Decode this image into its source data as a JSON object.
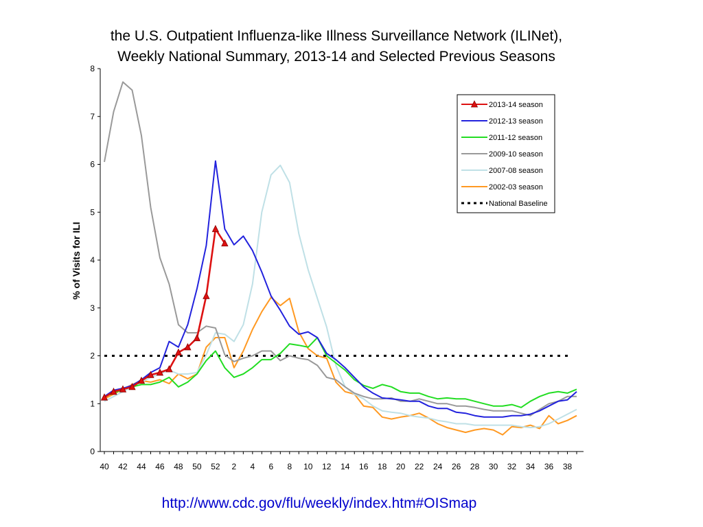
{
  "page": {
    "title_line1": "the U.S. Outpatient Influenza-like Illness Surveillance Network (ILINet),",
    "title_line2": "Weekly National Summary, 2013-14 and Selected Previous Seasons",
    "link": "http://www.cdc.gov/flu/weekly/index.htm#OISmap"
  },
  "chart_data": {
    "type": "line",
    "title": "the U.S. Outpatient Influenza-like Illness Surveillance Network (ILINet), Weekly National Summary, 2013-14 and Selected Previous Seasons",
    "xlabel": "",
    "ylabel": "% of Visits for ILI",
    "ylim": [
      0,
      8
    ],
    "yticks": [
      0,
      1,
      2,
      3,
      4,
      5,
      6,
      7,
      8
    ],
    "x_weeks": [
      40,
      41,
      42,
      43,
      44,
      45,
      46,
      47,
      48,
      49,
      50,
      51,
      52,
      1,
      2,
      3,
      4,
      5,
      6,
      7,
      8,
      9,
      10,
      11,
      12,
      13,
      14,
      15,
      16,
      17,
      18,
      19,
      20,
      21,
      22,
      23,
      24,
      25,
      26,
      27,
      28,
      29,
      30,
      31,
      32,
      33,
      34,
      35,
      36,
      37,
      38,
      39
    ],
    "x_tick_labels": [
      "40",
      "42",
      "44",
      "46",
      "48",
      "50",
      "52",
      "2",
      "4",
      "6",
      "8",
      "10",
      "12",
      "14",
      "16",
      "18",
      "20",
      "22",
      "24",
      "26",
      "28",
      "30",
      "32",
      "34",
      "36",
      "38"
    ],
    "grid": false,
    "legend_position": "top-right",
    "baseline": {
      "name": "National Baseline",
      "value": 2.0,
      "color": "#000000"
    },
    "series": [
      {
        "name": "2013-14 season",
        "color": "#dd1111",
        "markers": true,
        "values": [
          1.13,
          1.25,
          1.3,
          1.35,
          1.48,
          1.6,
          1.65,
          1.72,
          2.07,
          2.18,
          2.37,
          3.25,
          4.65,
          4.35
        ]
      },
      {
        "name": "2012-13 season",
        "color": "#2222dd",
        "markers": false,
        "values": [
          1.15,
          1.28,
          1.32,
          1.38,
          1.5,
          1.65,
          1.75,
          2.3,
          2.18,
          2.65,
          3.4,
          4.3,
          6.07,
          4.65,
          4.32,
          4.5,
          4.2,
          3.75,
          3.25,
          2.95,
          2.62,
          2.45,
          2.5,
          2.38,
          2.05,
          1.92,
          1.75,
          1.55,
          1.35,
          1.22,
          1.12,
          1.1,
          1.08,
          1.05,
          1.05,
          0.95,
          0.9,
          0.9,
          0.82,
          0.8,
          0.75,
          0.72,
          0.72,
          0.72,
          0.75,
          0.75,
          0.78,
          0.85,
          0.95,
          1.05,
          1.08,
          1.25
        ]
      },
      {
        "name": "2011-12 season",
        "color": "#22dd22",
        "markers": false,
        "values": [
          1.15,
          1.22,
          1.3,
          1.35,
          1.4,
          1.4,
          1.45,
          1.55,
          1.35,
          1.45,
          1.62,
          1.9,
          2.1,
          1.75,
          1.55,
          1.62,
          1.75,
          1.92,
          1.92,
          2.05,
          2.25,
          2.22,
          2.18,
          2.38,
          2.0,
          1.85,
          1.7,
          1.5,
          1.38,
          1.32,
          1.4,
          1.35,
          1.25,
          1.22,
          1.22,
          1.15,
          1.1,
          1.12,
          1.1,
          1.1,
          1.05,
          1.0,
          0.95,
          0.95,
          0.98,
          0.92,
          1.05,
          1.15,
          1.22,
          1.25,
          1.22,
          1.3
        ]
      },
      {
        "name": "2009-10 season",
        "color": "#999999",
        "markers": false,
        "values": [
          6.05,
          7.1,
          7.72,
          7.55,
          6.6,
          5.1,
          4.05,
          3.5,
          2.65,
          2.48,
          2.48,
          2.62,
          2.58,
          2.02,
          1.88,
          1.95,
          2.0,
          2.1,
          2.1,
          1.9,
          2.0,
          1.95,
          1.92,
          1.8,
          1.55,
          1.5,
          1.35,
          1.22,
          1.15,
          1.1,
          1.1,
          1.12,
          1.05,
          1.05,
          1.1,
          1.05,
          1.0,
          1.0,
          0.95,
          0.95,
          0.92,
          0.88,
          0.85,
          0.85,
          0.85,
          0.8,
          0.75,
          0.88,
          1.0,
          1.05,
          1.15,
          1.15
        ]
      },
      {
        "name": "2007-08 season",
        "color": "#bfe0e6",
        "markers": false,
        "values": [
          1.05,
          1.15,
          1.25,
          1.35,
          1.45,
          1.55,
          1.62,
          1.7,
          1.62,
          1.62,
          1.65,
          2.02,
          2.48,
          2.45,
          2.3,
          2.65,
          3.5,
          5.0,
          5.78,
          5.98,
          5.62,
          4.55,
          3.8,
          3.2,
          2.6,
          1.8,
          1.35,
          1.2,
          1.1,
          0.95,
          0.85,
          0.82,
          0.8,
          0.75,
          0.72,
          0.7,
          0.65,
          0.62,
          0.58,
          0.58,
          0.55,
          0.55,
          0.55,
          0.55,
          0.55,
          0.52,
          0.5,
          0.52,
          0.58,
          0.68,
          0.78,
          0.88
        ]
      },
      {
        "name": "2002-03 season",
        "color": "#ff9922",
        "markers": false,
        "values": [
          1.1,
          1.2,
          1.3,
          1.4,
          1.48,
          1.45,
          1.5,
          1.42,
          1.62,
          1.52,
          1.62,
          2.18,
          2.38,
          2.38,
          1.75,
          2.1,
          2.55,
          2.92,
          3.22,
          3.05,
          3.2,
          2.5,
          2.15,
          2.0,
          1.95,
          1.45,
          1.25,
          1.2,
          0.95,
          0.92,
          0.72,
          0.68,
          0.72,
          0.75,
          0.8,
          0.7,
          0.58,
          0.5,
          0.45,
          0.4,
          0.45,
          0.48,
          0.45,
          0.35,
          0.52,
          0.5,
          0.55,
          0.48,
          0.75,
          0.58,
          0.65,
          0.75
        ]
      }
    ]
  }
}
